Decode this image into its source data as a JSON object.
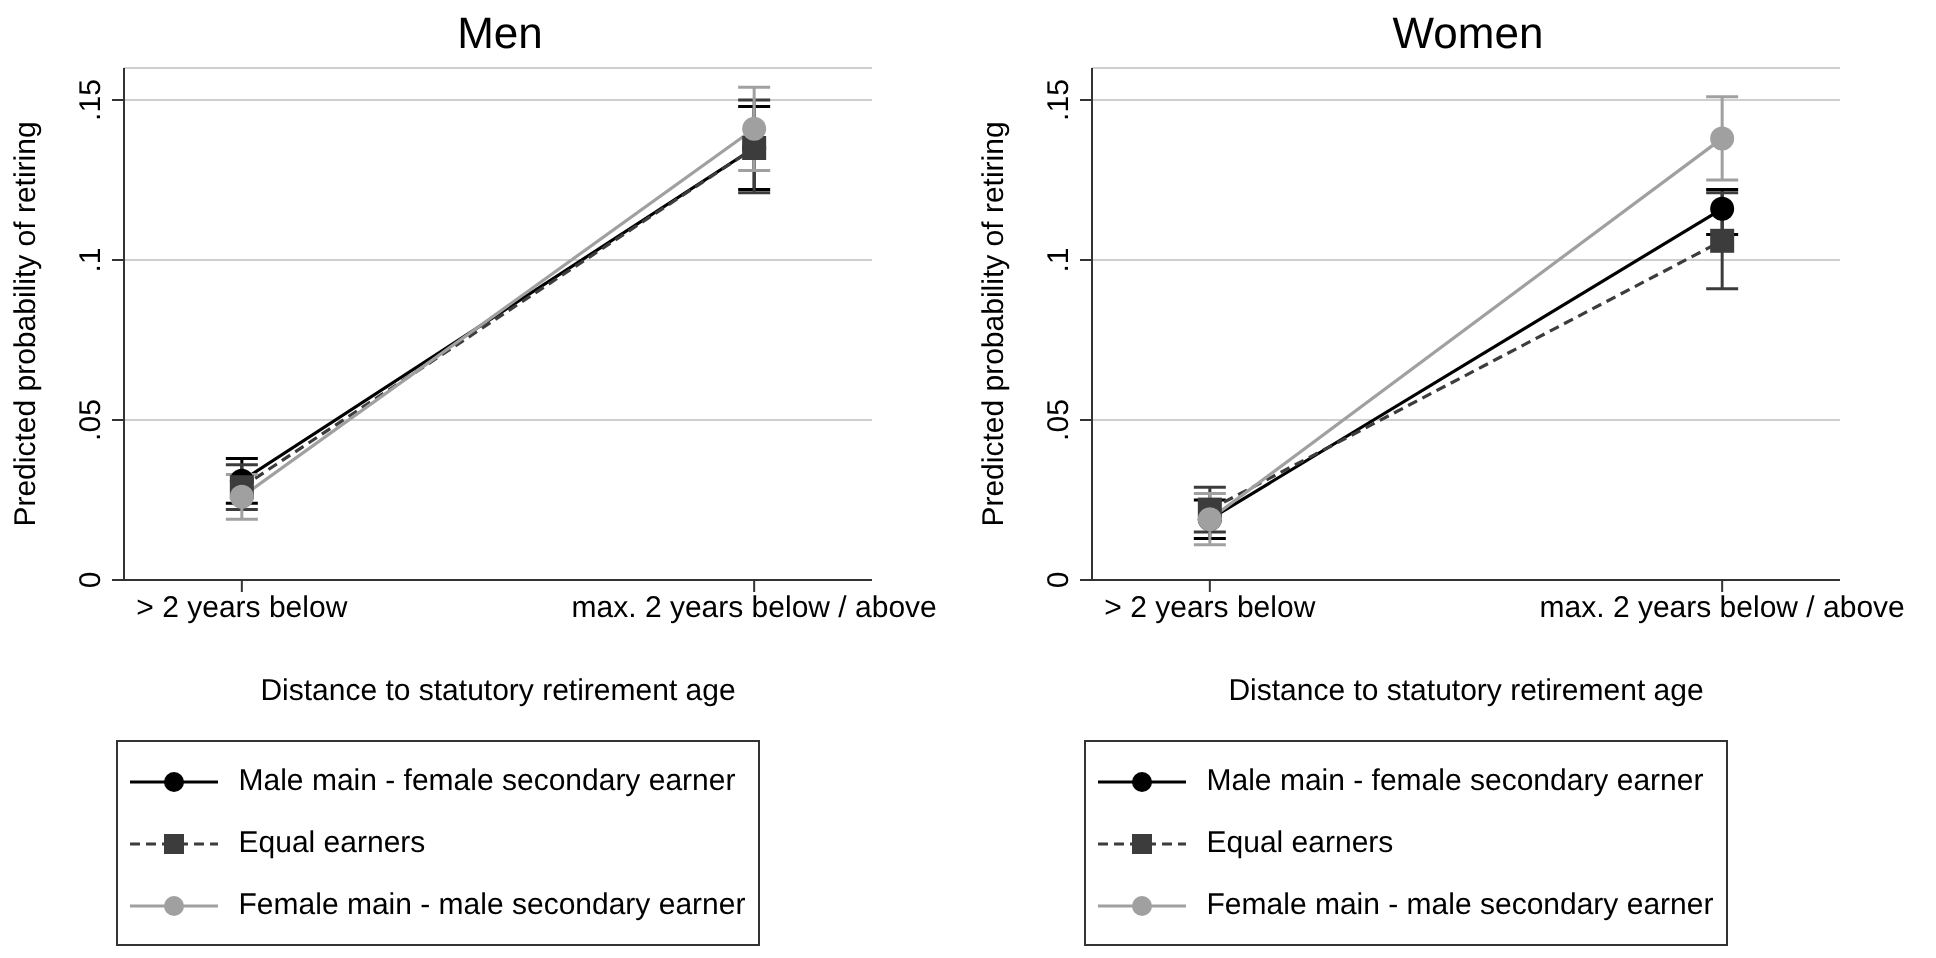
{
  "chart_data": [
    {
      "type": "line",
      "title": "Men",
      "xlabel": "Distance to statutory retirement age",
      "ylabel": "Predicted probability of retiring",
      "categories": [
        "> 2 years below",
        "max. 2 years below / above"
      ],
      "ylim": [
        0,
        0.16
      ],
      "yticks": [
        {
          "value": 0,
          "label": "0"
        },
        {
          "value": 0.05,
          "label": ".05"
        },
        {
          "value": 0.1,
          "label": ".1"
        },
        {
          "value": 0.15,
          "label": ".15"
        }
      ],
      "grid": "y",
      "legend": "bottom",
      "series": [
        {
          "name": "Male main - female secondary earner",
          "color": "#000000",
          "marker": "circle",
          "line_style": "solid",
          "values": [
            0.031,
            0.135
          ],
          "errors": [
            [
              0.024,
              0.038
            ],
            [
              0.122,
              0.148
            ]
          ]
        },
        {
          "name": "Equal earners",
          "color": "#3c3c3c",
          "marker": "square",
          "line_style": "dashed",
          "values": [
            0.029,
            0.135
          ],
          "errors": [
            [
              0.022,
              0.036
            ],
            [
              0.121,
              0.15
            ]
          ]
        },
        {
          "name": "Female main - male secondary earner",
          "color": "#a0a0a0",
          "marker": "circle",
          "line_style": "solid",
          "values": [
            0.026,
            0.141
          ],
          "errors": [
            [
              0.019,
              0.033
            ],
            [
              0.128,
              0.154
            ]
          ]
        }
      ]
    },
    {
      "type": "line",
      "title": "Women",
      "xlabel": "Distance to statutory retirement age",
      "ylabel": "Predicted probability of retiring",
      "categories": [
        "> 2 years below",
        "max. 2 years below / above"
      ],
      "ylim": [
        0,
        0.16
      ],
      "yticks": [
        {
          "value": 0,
          "label": "0"
        },
        {
          "value": 0.05,
          "label": ".05"
        },
        {
          "value": 0.1,
          "label": ".1"
        },
        {
          "value": 0.15,
          "label": ".15"
        }
      ],
      "grid": "y",
      "legend": "bottom",
      "series": [
        {
          "name": "Male main - female secondary earner",
          "color": "#000000",
          "marker": "circle",
          "line_style": "solid",
          "values": [
            0.019,
            0.116
          ],
          "errors": [
            [
              0.013,
              0.025
            ],
            [
              0.108,
              0.122
            ]
          ]
        },
        {
          "name": "Equal earners",
          "color": "#3c3c3c",
          "marker": "square",
          "line_style": "dashed",
          "values": [
            0.022,
            0.106
          ],
          "errors": [
            [
              0.015,
              0.029
            ],
            [
              0.091,
              0.121
            ]
          ]
        },
        {
          "name": "Female main - male secondary earner",
          "color": "#a0a0a0",
          "marker": "circle",
          "line_style": "solid",
          "values": [
            0.019,
            0.138
          ],
          "errors": [
            [
              0.011,
              0.027
            ],
            [
              0.125,
              0.151
            ]
          ]
        }
      ]
    }
  ]
}
